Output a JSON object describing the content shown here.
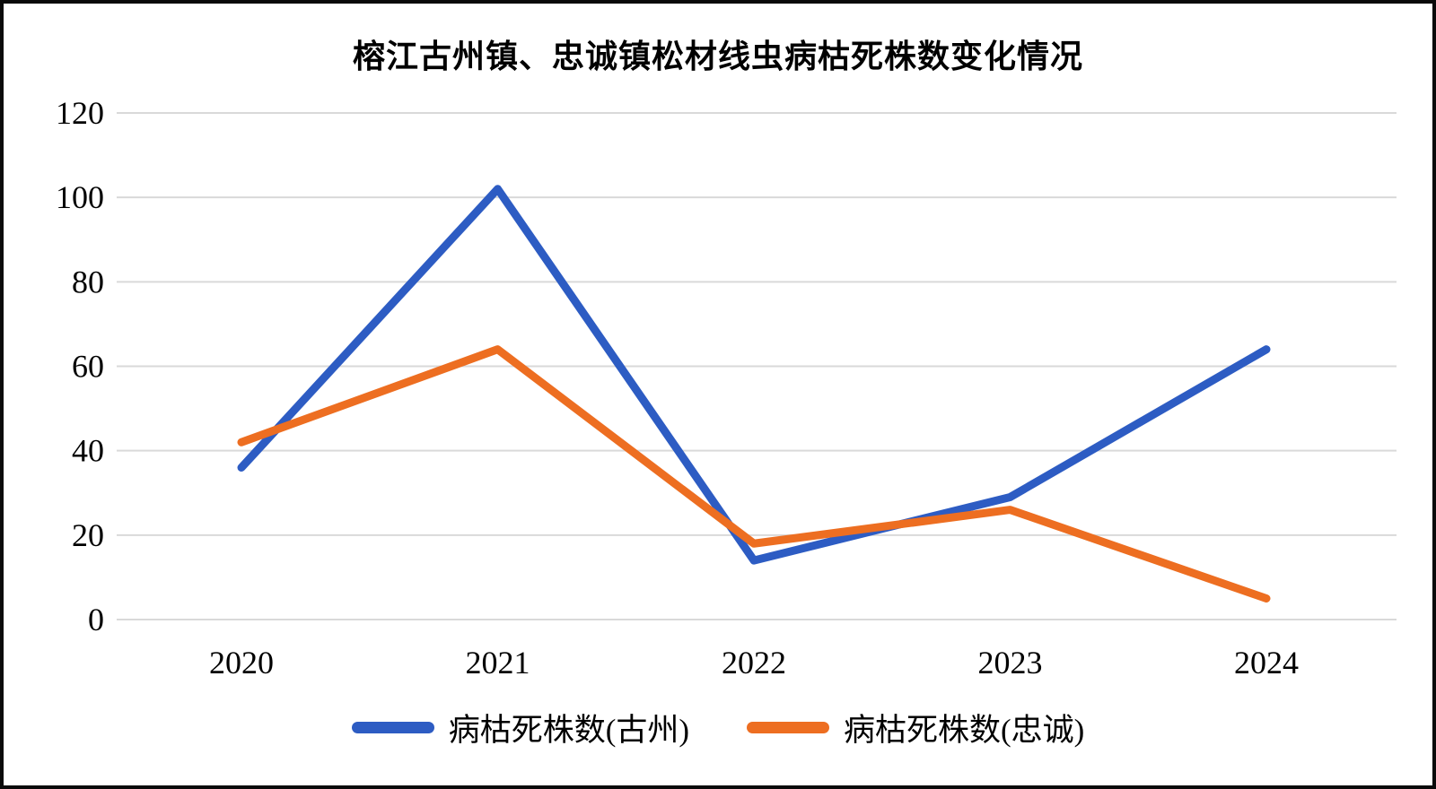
{
  "chart_data": {
    "type": "line",
    "title": "榕江古州镇、忠诚镇松材线虫病枯死株数变化情况",
    "xlabel": "",
    "ylabel": "",
    "categories": [
      "2020",
      "2021",
      "2022",
      "2023",
      "2024"
    ],
    "series": [
      {
        "name": "病枯死株数(古州)",
        "values": [
          36,
          102,
          14,
          29,
          64
        ],
        "color": "#2d5cc3"
      },
      {
        "name": "病枯死株数(忠诚)",
        "values": [
          42,
          64,
          18,
          26,
          5
        ],
        "color": "#ed6e21"
      }
    ],
    "ylim": [
      0,
      120
    ],
    "y_ticks": [
      0,
      20,
      40,
      60,
      80,
      100,
      120
    ],
    "grid": "horizontal",
    "grid_color": "#d9d9d9",
    "legend_position": "bottom",
    "text_color": "#000000"
  }
}
